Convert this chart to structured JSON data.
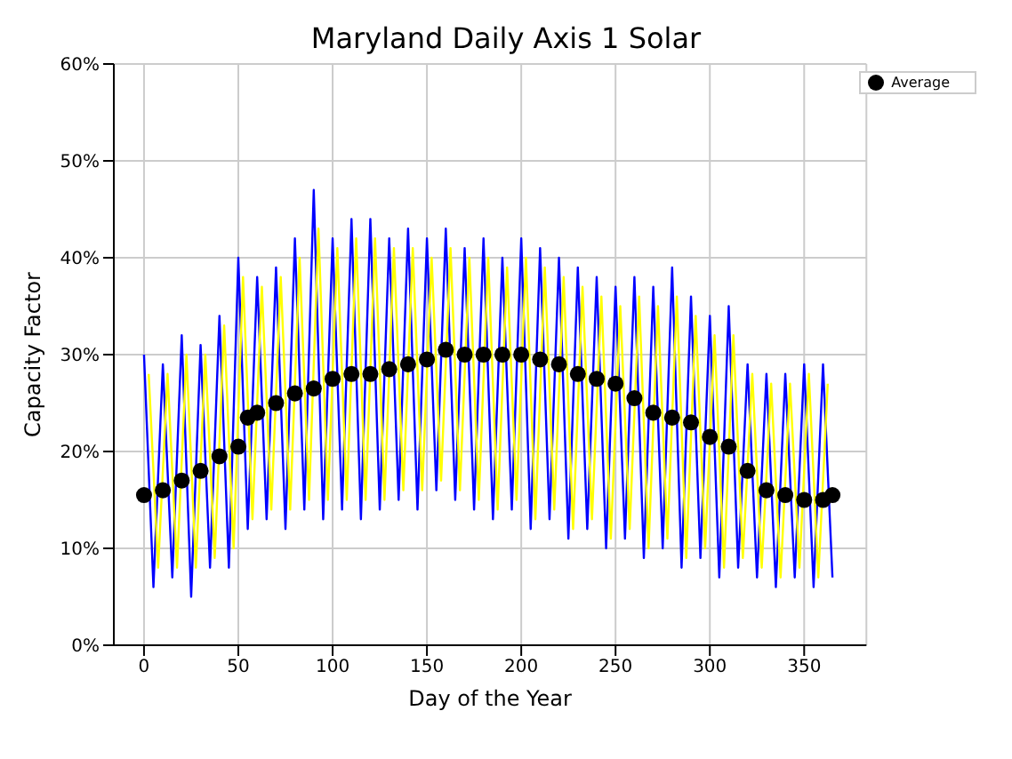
{
  "chart_data": {
    "type": "line",
    "title": "Maryland Daily Axis 1 Solar",
    "xlabel": "Day of the Year",
    "ylabel": "Capacity Factor",
    "xlim": [
      -16,
      383
    ],
    "xticks": [
      0,
      50,
      100,
      150,
      200,
      250,
      300,
      350
    ],
    "ylim": [
      0,
      60
    ],
    "yticks": [
      {
        "value": 0,
        "label": "0%"
      },
      {
        "value": 10,
        "label": "10%"
      },
      {
        "value": 20,
        "label": "20%"
      },
      {
        "value": 30,
        "label": "30%"
      },
      {
        "value": 40,
        "label": "40%"
      },
      {
        "value": 50,
        "label": "50%"
      },
      {
        "value": 60,
        "label": "60%"
      }
    ],
    "grid": true,
    "legend": "top right",
    "series": [
      {
        "color": "#0000ff",
        "marker": "none",
        "x": [
          0,
          5,
          10,
          15,
          20,
          25,
          30,
          35,
          40,
          45,
          50,
          55,
          60,
          65,
          70,
          75,
          80,
          85,
          90,
          95,
          100,
          105,
          110,
          115,
          120,
          125,
          130,
          135,
          140,
          145,
          150,
          155,
          160,
          165,
          170,
          175,
          180,
          185,
          190,
          195,
          200,
          205,
          210,
          215,
          220,
          225,
          230,
          235,
          240,
          245,
          250,
          255,
          260,
          265,
          270,
          275,
          280,
          285,
          290,
          295,
          300,
          305,
          310,
          315,
          320,
          325,
          330,
          335,
          340,
          345,
          350,
          355,
          360,
          365
        ],
        "values": [
          30,
          6,
          29,
          7,
          32,
          5,
          31,
          8,
          34,
          8,
          40,
          12,
          38,
          13,
          39,
          12,
          42,
          14,
          47,
          13,
          42,
          14,
          44,
          13,
          44,
          14,
          42,
          15,
          43,
          14,
          42,
          16,
          43,
          15,
          41,
          14,
          42,
          13,
          40,
          14,
          42,
          12,
          41,
          13,
          40,
          11,
          39,
          12,
          38,
          10,
          37,
          11,
          38,
          9,
          37,
          10,
          39,
          8,
          36,
          9,
          34,
          7,
          35,
          8,
          29,
          7,
          28,
          6,
          28,
          7,
          29,
          6,
          29,
          7
        ]
      },
      {
        "color": "#ffff00",
        "marker": "none",
        "x": [
          2.5,
          7.5,
          12.5,
          17.5,
          22.5,
          27.5,
          32.5,
          37.5,
          42.5,
          47.5,
          52.5,
          57.5,
          62.5,
          67.5,
          72.5,
          77.5,
          82.5,
          87.5,
          92.5,
          97.5,
          102.5,
          107.5,
          112.5,
          117.5,
          122.5,
          127.5,
          132.5,
          137.5,
          142.5,
          147.5,
          152.5,
          157.5,
          162.5,
          167.5,
          172.5,
          177.5,
          182.5,
          187.5,
          192.5,
          197.5,
          202.5,
          207.5,
          212.5,
          217.5,
          222.5,
          227.5,
          232.5,
          237.5,
          242.5,
          247.5,
          252.5,
          257.5,
          262.5,
          267.5,
          272.5,
          277.5,
          282.5,
          287.5,
          292.5,
          297.5,
          302.5,
          307.5,
          312.5,
          317.5,
          322.5,
          327.5,
          332.5,
          337.5,
          342.5,
          347.5,
          352.5,
          357.5,
          362.5
        ],
        "values": [
          28,
          8,
          28,
          8,
          30,
          8,
          30,
          9,
          33,
          10,
          38,
          13,
          37,
          14,
          38,
          14,
          40,
          15,
          43,
          15,
          41,
          15,
          42,
          15,
          42,
          15,
          41,
          16,
          41,
          16,
          40,
          17,
          41,
          16,
          40,
          15,
          40,
          14,
          39,
          15,
          40,
          13,
          39,
          14,
          38,
          12,
          37,
          13,
          36,
          11,
          35,
          12,
          36,
          10,
          35,
          11,
          36,
          9,
          34,
          10,
          32,
          8,
          32,
          9,
          28,
          8,
          27,
          7,
          27,
          8,
          28,
          7,
          27
        ]
      },
      {
        "name": "Average",
        "type": "scatter",
        "color": "#000000",
        "marker": "circle",
        "x": [
          0,
          10,
          20,
          30,
          40,
          50,
          55,
          60,
          70,
          80,
          90,
          100,
          110,
          120,
          130,
          140,
          150,
          160,
          170,
          180,
          190,
          200,
          210,
          220,
          230,
          240,
          250,
          260,
          270,
          280,
          290,
          300,
          310,
          320,
          330,
          340,
          350,
          360,
          365
        ],
        "values": [
          15.5,
          16,
          17,
          18,
          19.5,
          20.5,
          23.5,
          24,
          25,
          26,
          26.5,
          27.5,
          28,
          28,
          28.5,
          29,
          29.5,
          30.5,
          30,
          30,
          30,
          30,
          29.5,
          29,
          28,
          27.5,
          27,
          25.5,
          24,
          23.5,
          23,
          21.5,
          20.5,
          18,
          16,
          15.5,
          15,
          15,
          15.5
        ]
      }
    ]
  }
}
